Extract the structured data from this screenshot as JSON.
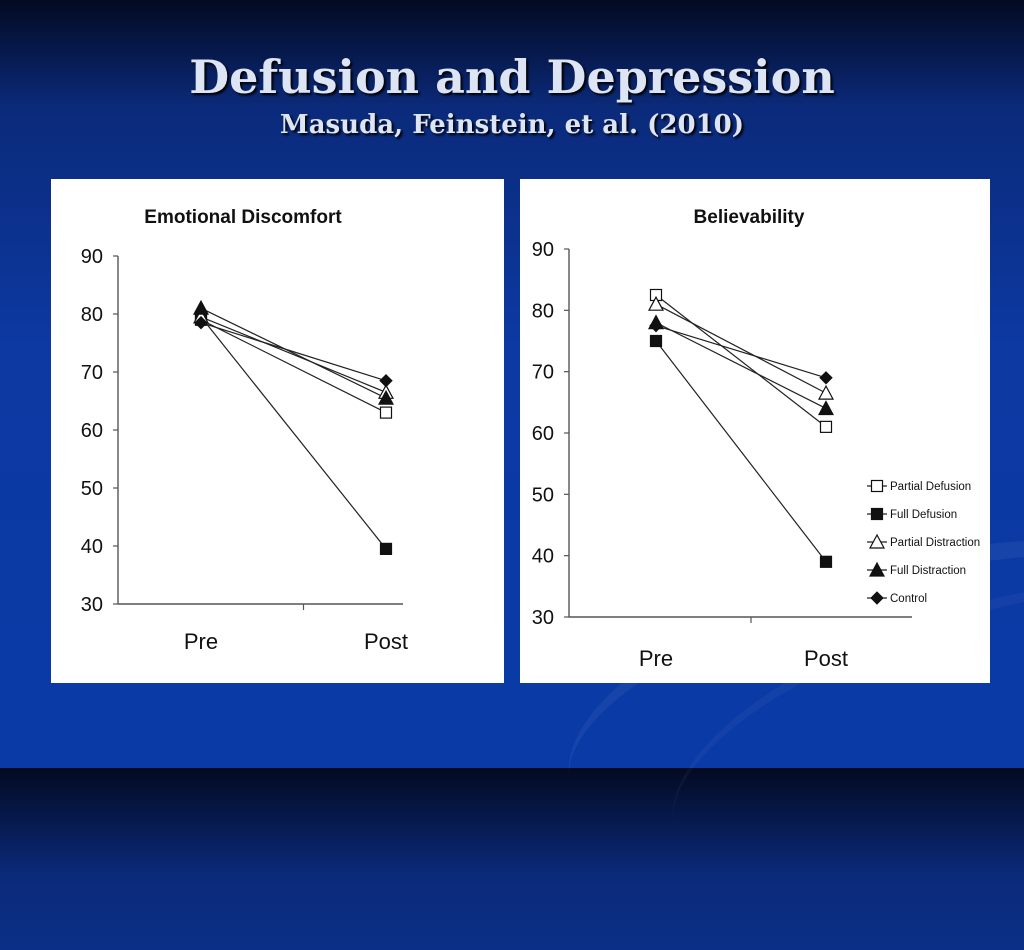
{
  "slide": {
    "title": "Defusion and Depression",
    "subtitle": "Masuda, Feinstein, et al. (2010)",
    "colors": {
      "background": "#0c39a2",
      "title_text": "#dde4f4",
      "panel": "#ffffff",
      "ink": "#111111"
    }
  },
  "chart_data": [
    {
      "type": "line",
      "title": "Emotional Discomfort",
      "xlabel": "",
      "ylabel": "",
      "categories": [
        "Pre",
        "Post"
      ],
      "ylim": [
        30,
        90
      ],
      "yticks": [
        30,
        40,
        50,
        60,
        70,
        80,
        90
      ],
      "grid": false,
      "legend": null,
      "series": [
        {
          "name": "Partial Defusion",
          "marker": "square-open",
          "values": [
            79,
            63
          ]
        },
        {
          "name": "Full Defusion",
          "marker": "square-filled",
          "values": [
            79.5,
            39.5
          ]
        },
        {
          "name": "Partial Distraction",
          "marker": "triangle-open",
          "values": [
            79.5,
            66.5
          ]
        },
        {
          "name": "Full Distraction",
          "marker": "triangle-filled",
          "values": [
            81,
            65.5
          ]
        },
        {
          "name": "Control",
          "marker": "diamond-filled",
          "values": [
            78.5,
            68.5
          ]
        }
      ]
    },
    {
      "type": "line",
      "title": "Believability",
      "xlabel": "",
      "ylabel": "",
      "categories": [
        "Pre",
        "Post"
      ],
      "ylim": [
        30,
        90
      ],
      "yticks": [
        30,
        40,
        50,
        60,
        70,
        80,
        90
      ],
      "grid": false,
      "legend": "right-bottom",
      "series": [
        {
          "name": "Partial Defusion",
          "marker": "square-open",
          "values": [
            82.5,
            61
          ]
        },
        {
          "name": "Full Defusion",
          "marker": "square-filled",
          "values": [
            75,
            39
          ]
        },
        {
          "name": "Partial Distraction",
          "marker": "triangle-open",
          "values": [
            81,
            66.5
          ]
        },
        {
          "name": "Full Distraction",
          "marker": "triangle-filled",
          "values": [
            78,
            64
          ]
        },
        {
          "name": "Control",
          "marker": "diamond-filled",
          "values": [
            77.5,
            69
          ]
        }
      ]
    }
  ]
}
